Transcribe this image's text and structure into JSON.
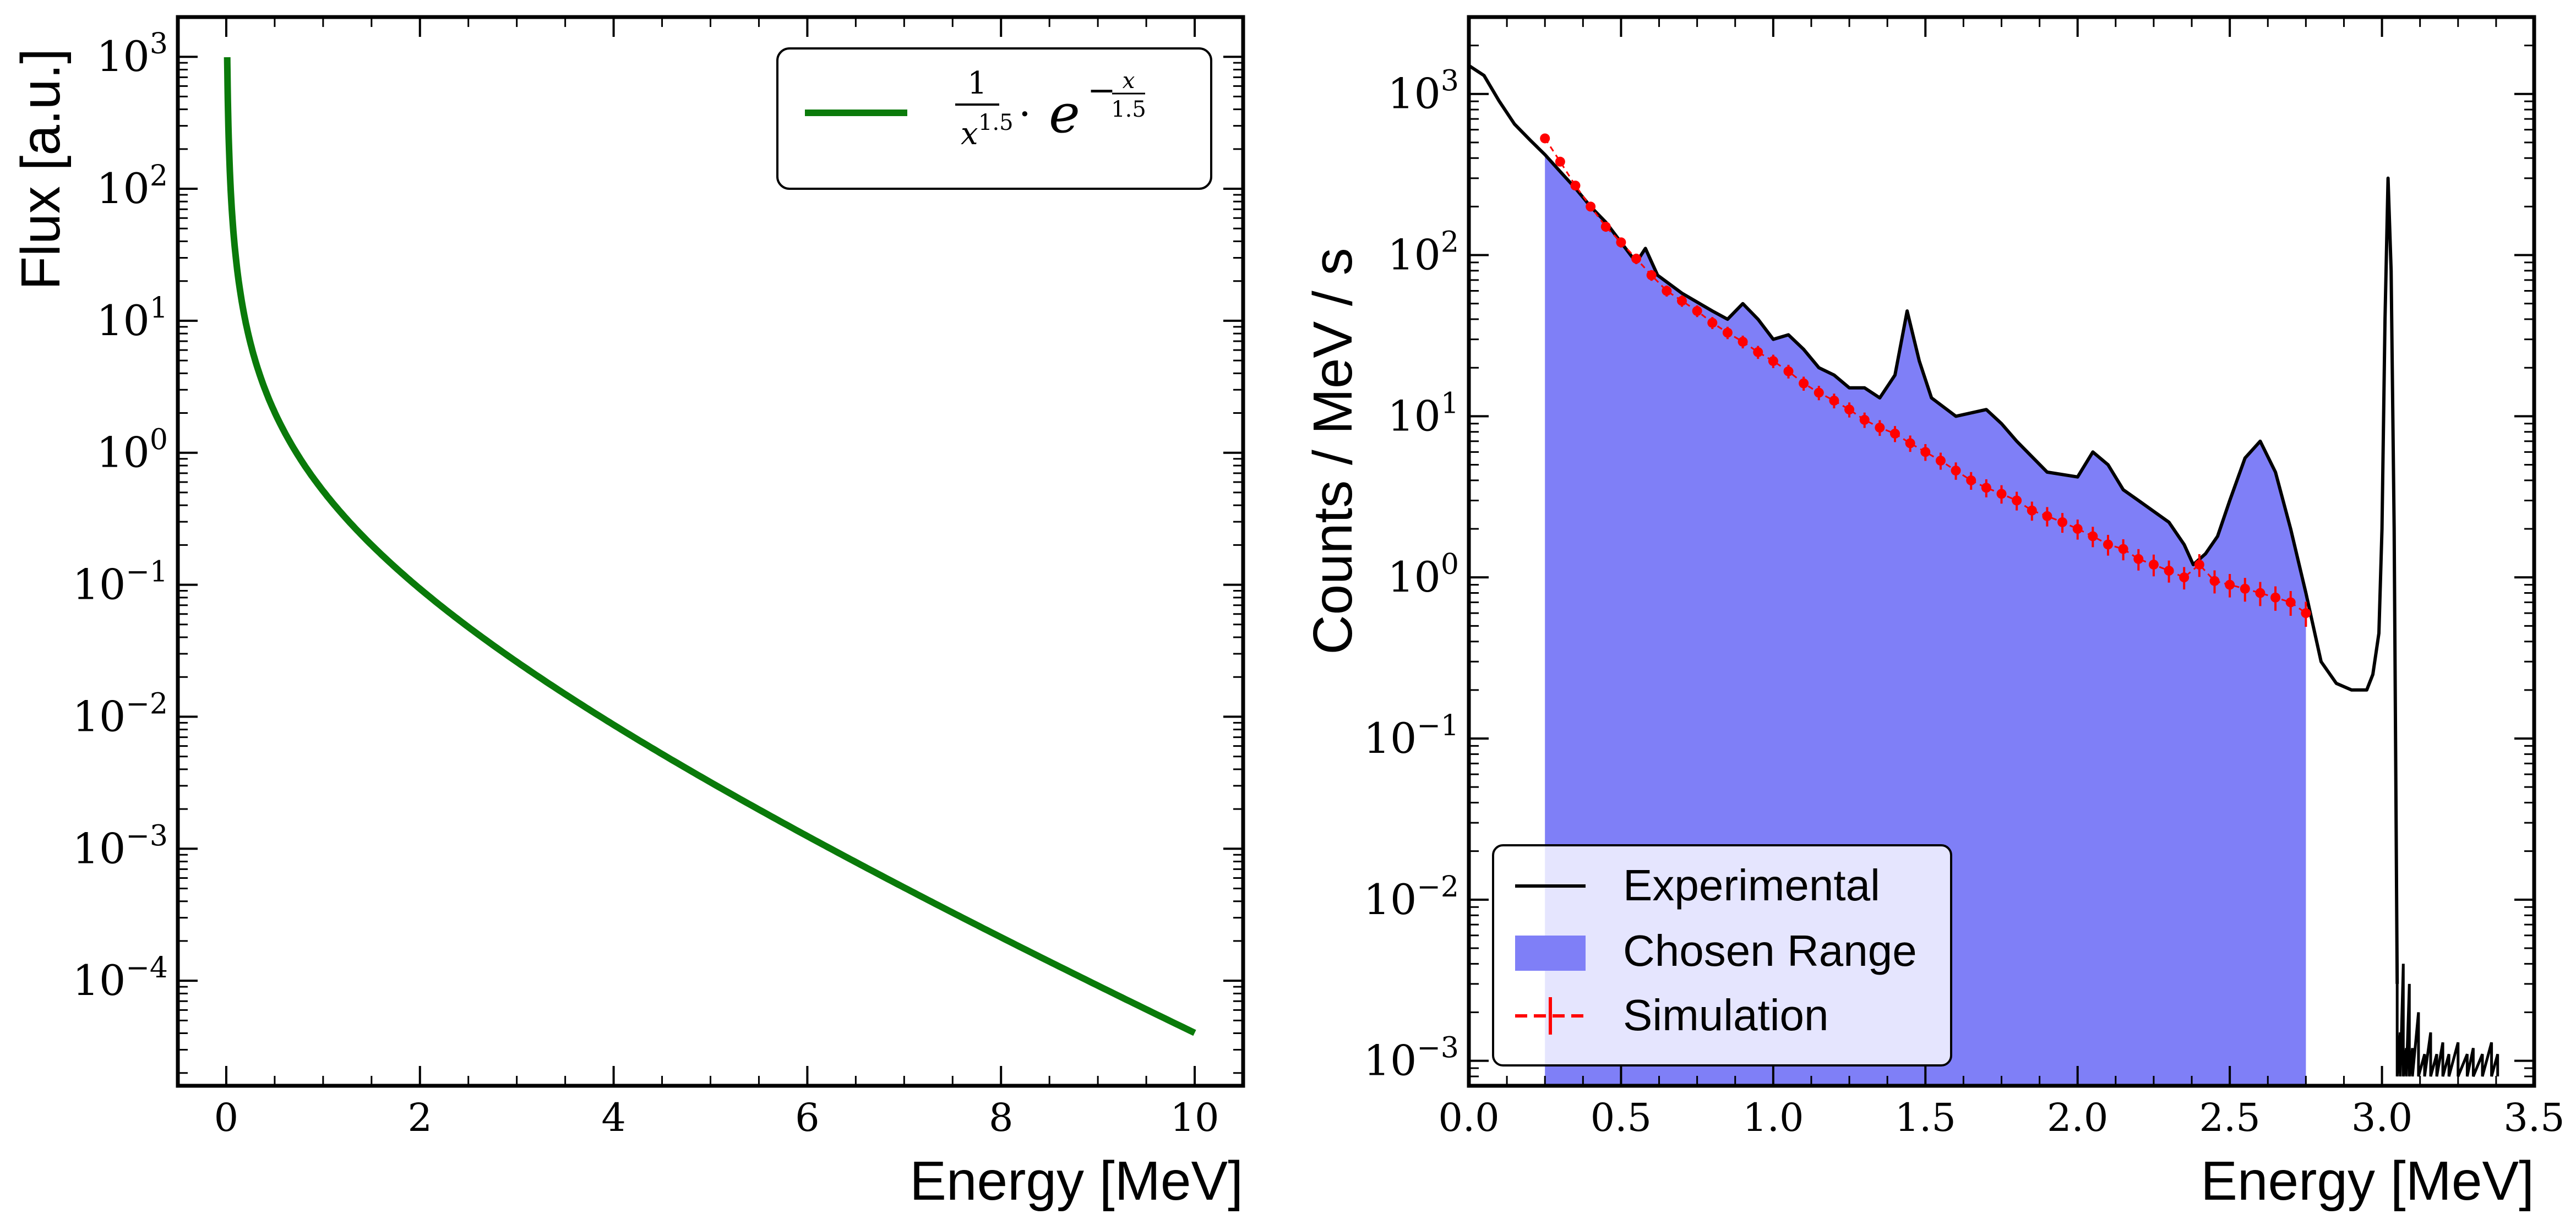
{
  "colors": {
    "flux_curve": "#0a7a0a",
    "experimental": "#000000",
    "chosen_range": "#7f7ff7",
    "simulation": "#ff0000",
    "axes": "#000000",
    "legend_border": "#000000"
  },
  "chart_data": [
    {
      "type": "line",
      "title": "",
      "xlabel": "Energy [MeV]",
      "ylabel": "Flux [a.u.]",
      "xlim": [
        -0.5,
        10.5
      ],
      "ylim": [
        1.6e-05,
        2000
      ],
      "yscale": "log",
      "grid": false,
      "x_ticks": [
        0,
        2,
        4,
        6,
        8,
        10
      ],
      "x_tick_labels": [
        "0",
        "2",
        "4",
        "6",
        "8",
        "10"
      ],
      "y_ticks": [
        1000,
        100,
        10,
        1,
        0.1,
        0.01,
        0.001,
        0.0001
      ],
      "y_tick_labels": [
        {
          "base": "10",
          "exp": "3"
        },
        {
          "base": "10",
          "exp": "2"
        },
        {
          "base": "10",
          "exp": "1"
        },
        {
          "base": "10",
          "exp": "0"
        },
        {
          "base": "10",
          "exp": "−1"
        },
        {
          "base": "10",
          "exp": "−2"
        },
        {
          "base": "10",
          "exp": "−3"
        },
        {
          "base": "10",
          "exp": "−4"
        }
      ],
      "legend_position": "top-right",
      "series": [
        {
          "name": "1/x^1.5 · e^(−x/1.5)",
          "legend": {
            "num": "1",
            "den_base": "x",
            "den_exp": "1.5",
            "dot": "·",
            "e": "e",
            "exp_num": "x",
            "exp_den": "1.5"
          },
          "function": "x^-1.5 * exp(-x/1.5)",
          "x_range": [
            0.01,
            10
          ],
          "y_max": 1000
        }
      ]
    },
    {
      "type": "line",
      "title": "",
      "xlabel": "Energy [MeV]",
      "ylabel": "Counts / MeV / s",
      "xlim": [
        0.0,
        3.5
      ],
      "ylim": [
        0.0007,
        3000
      ],
      "yscale": "log",
      "grid": false,
      "x_ticks": [
        0.0,
        0.5,
        1.0,
        1.5,
        2.0,
        2.5,
        3.0,
        3.5
      ],
      "x_tick_labels": [
        "0.0",
        "0.5",
        "1.0",
        "1.5",
        "2.0",
        "2.5",
        "3.0",
        "3.5"
      ],
      "y_ticks": [
        1000,
        100,
        10,
        1,
        0.1,
        0.01,
        0.001
      ],
      "y_tick_labels": [
        {
          "base": "10",
          "exp": "3"
        },
        {
          "base": "10",
          "exp": "2"
        },
        {
          "base": "10",
          "exp": "1"
        },
        {
          "base": "10",
          "exp": "0"
        },
        {
          "base": "10",
          "exp": "−1"
        },
        {
          "base": "10",
          "exp": "−2"
        },
        {
          "base": "10",
          "exp": "−3"
        }
      ],
      "legend_position": "bottom-left",
      "legend": [
        "Experimental",
        "Chosen Range",
        "Simulation"
      ],
      "chosen_range": [
        0.25,
        2.75
      ],
      "series": [
        {
          "name": "Experimental",
          "kind": "line",
          "x": [
            0.0,
            0.05,
            0.1,
            0.15,
            0.2,
            0.25,
            0.3,
            0.35,
            0.4,
            0.45,
            0.5,
            0.55,
            0.58,
            0.62,
            0.7,
            0.8,
            0.85,
            0.9,
            0.95,
            1.0,
            1.05,
            1.1,
            1.15,
            1.2,
            1.25,
            1.3,
            1.35,
            1.4,
            1.44,
            1.48,
            1.52,
            1.6,
            1.7,
            1.75,
            1.8,
            1.9,
            2.0,
            2.05,
            2.1,
            2.15,
            2.2,
            2.3,
            2.35,
            2.38,
            2.42,
            2.46,
            2.5,
            2.55,
            2.6,
            2.65,
            2.7,
            2.75,
            2.8,
            2.85,
            2.9,
            2.95,
            2.97,
            2.99,
            3.0,
            3.01,
            3.02,
            3.03,
            3.04,
            3.05
          ],
          "y": [
            1500,
            1300,
            900,
            650,
            520,
            420,
            330,
            260,
            200,
            160,
            120,
            90,
            110,
            75,
            58,
            45,
            40,
            50,
            40,
            30,
            32,
            26,
            20,
            18,
            15,
            15,
            13,
            18,
            45,
            22,
            13,
            10,
            11,
            9,
            7,
            4.5,
            4.2,
            6,
            5,
            3.5,
            3,
            2.2,
            1.6,
            1.2,
            1.4,
            1.8,
            3.0,
            5.5,
            7,
            4.5,
            2.0,
            0.8,
            0.3,
            0.22,
            0.2,
            0.2,
            0.25,
            0.45,
            2.0,
            40,
            300,
            80,
            2.0,
            0.003
          ]
        },
        {
          "name": "Chosen Range",
          "kind": "fill"
        },
        {
          "name": "Simulation",
          "kind": "errorbar",
          "x": [
            0.25,
            0.3,
            0.35,
            0.4,
            0.45,
            0.5,
            0.55,
            0.6,
            0.65,
            0.7,
            0.75,
            0.8,
            0.85,
            0.9,
            0.95,
            1.0,
            1.05,
            1.1,
            1.15,
            1.2,
            1.25,
            1.3,
            1.35,
            1.4,
            1.45,
            1.5,
            1.55,
            1.6,
            1.65,
            1.7,
            1.75,
            1.8,
            1.85,
            1.9,
            1.95,
            2.0,
            2.05,
            2.1,
            2.15,
            2.2,
            2.25,
            2.3,
            2.35,
            2.4,
            2.45,
            2.5,
            2.55,
            2.6,
            2.65,
            2.7,
            2.75
          ],
          "y": [
            530,
            380,
            270,
            200,
            150,
            120,
            95,
            75,
            60,
            52,
            45,
            38,
            33,
            29,
            25,
            22,
            19,
            16,
            14,
            12.5,
            11,
            9.5,
            8.5,
            7.8,
            6.8,
            6.0,
            5.3,
            4.6,
            4.0,
            3.6,
            3.3,
            3.0,
            2.6,
            2.4,
            2.2,
            2.0,
            1.8,
            1.6,
            1.5,
            1.3,
            1.2,
            1.1,
            1.0,
            1.2,
            0.95,
            0.9,
            0.85,
            0.8,
            0.75,
            0.7,
            0.6
          ]
        }
      ]
    }
  ]
}
